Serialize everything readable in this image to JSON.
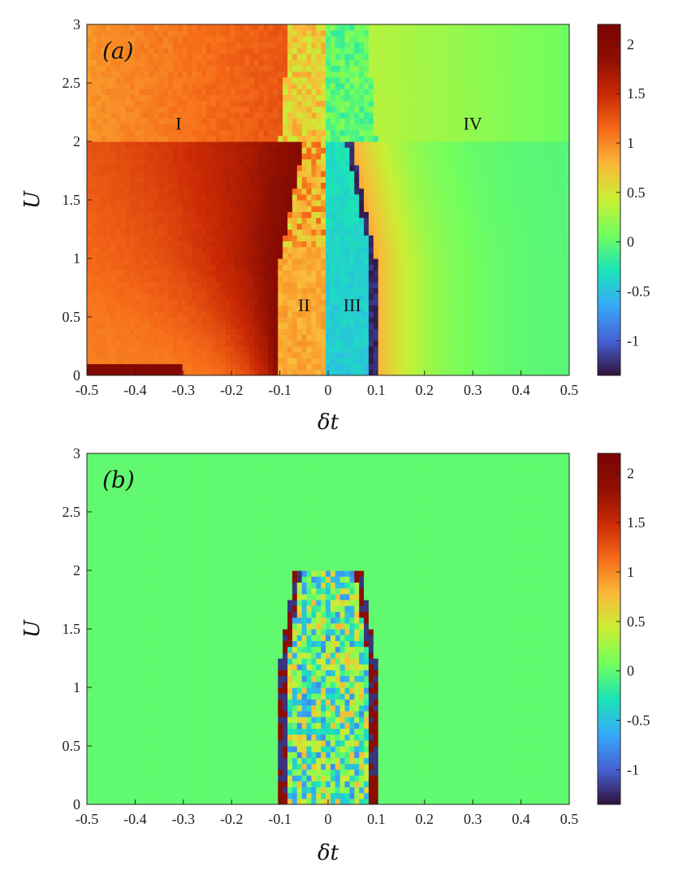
{
  "chart_data": [
    {
      "type": "heatmap",
      "panel_label": "(a)",
      "xlabel": "δt",
      "ylabel": "U",
      "xlim": [
        -0.5,
        0.5
      ],
      "ylim": [
        0,
        3
      ],
      "x_ticks": [
        "-0.5",
        "-0.4",
        "-0.3",
        "-0.2",
        "-0.1",
        "0",
        "0.1",
        "0.2",
        "0.3",
        "0.4",
        "0.5"
      ],
      "y_ticks": [
        "0",
        "0.5",
        "1",
        "1.5",
        "2",
        "2.5",
        "3"
      ],
      "colorbar": {
        "colormap": "turbo",
        "range": [
          -1.35,
          2.2
        ],
        "ticks": [
          "-1",
          "-0.5",
          "0",
          "0.5",
          "1",
          "1.5",
          "2"
        ]
      },
      "annotations": [
        {
          "text": "I",
          "x": -0.31,
          "y": 2.1
        },
        {
          "text": "II",
          "x": -0.05,
          "y": 0.55
        },
        {
          "text": "III",
          "x": 0.05,
          "y": 0.55
        },
        {
          "text": "IV",
          "x": 0.3,
          "y": 2.1
        }
      ],
      "regions": [
        {
          "name": "I",
          "dt_range": [
            -0.5,
            -0.1
          ],
          "typical_value": 1.1
        },
        {
          "name": "II",
          "dt_range": [
            -0.1,
            0.0
          ],
          "typical_value": 0.85
        },
        {
          "name": "III",
          "dt_range": [
            0.0,
            0.1
          ],
          "typical_value": -0.35
        },
        {
          "name": "IV",
          "dt_range": [
            0.1,
            0.5
          ],
          "typical_value": 0.1
        }
      ]
    },
    {
      "type": "heatmap",
      "panel_label": "(b)",
      "xlabel": "δt",
      "ylabel": "U",
      "xlim": [
        -0.5,
        0.5
      ],
      "ylim": [
        0,
        3
      ],
      "x_ticks": [
        "-0.5",
        "-0.4",
        "-0.3",
        "-0.2",
        "-0.1",
        "0",
        "0.1",
        "0.2",
        "0.3",
        "0.4",
        "0.5"
      ],
      "y_ticks": [
        "0",
        "0.5",
        "1",
        "1.5",
        "2",
        "2.5",
        "3"
      ],
      "colorbar": {
        "colormap": "turbo",
        "range": [
          -1.35,
          2.2
        ],
        "ticks": [
          "-1",
          "-0.5",
          "0",
          "0.5",
          "1",
          "1.5",
          "2"
        ]
      },
      "background_value": 0,
      "active_region": {
        "dt_range": [
          -0.1,
          0.1
        ],
        "U_range": [
          0,
          2
        ]
      }
    }
  ]
}
